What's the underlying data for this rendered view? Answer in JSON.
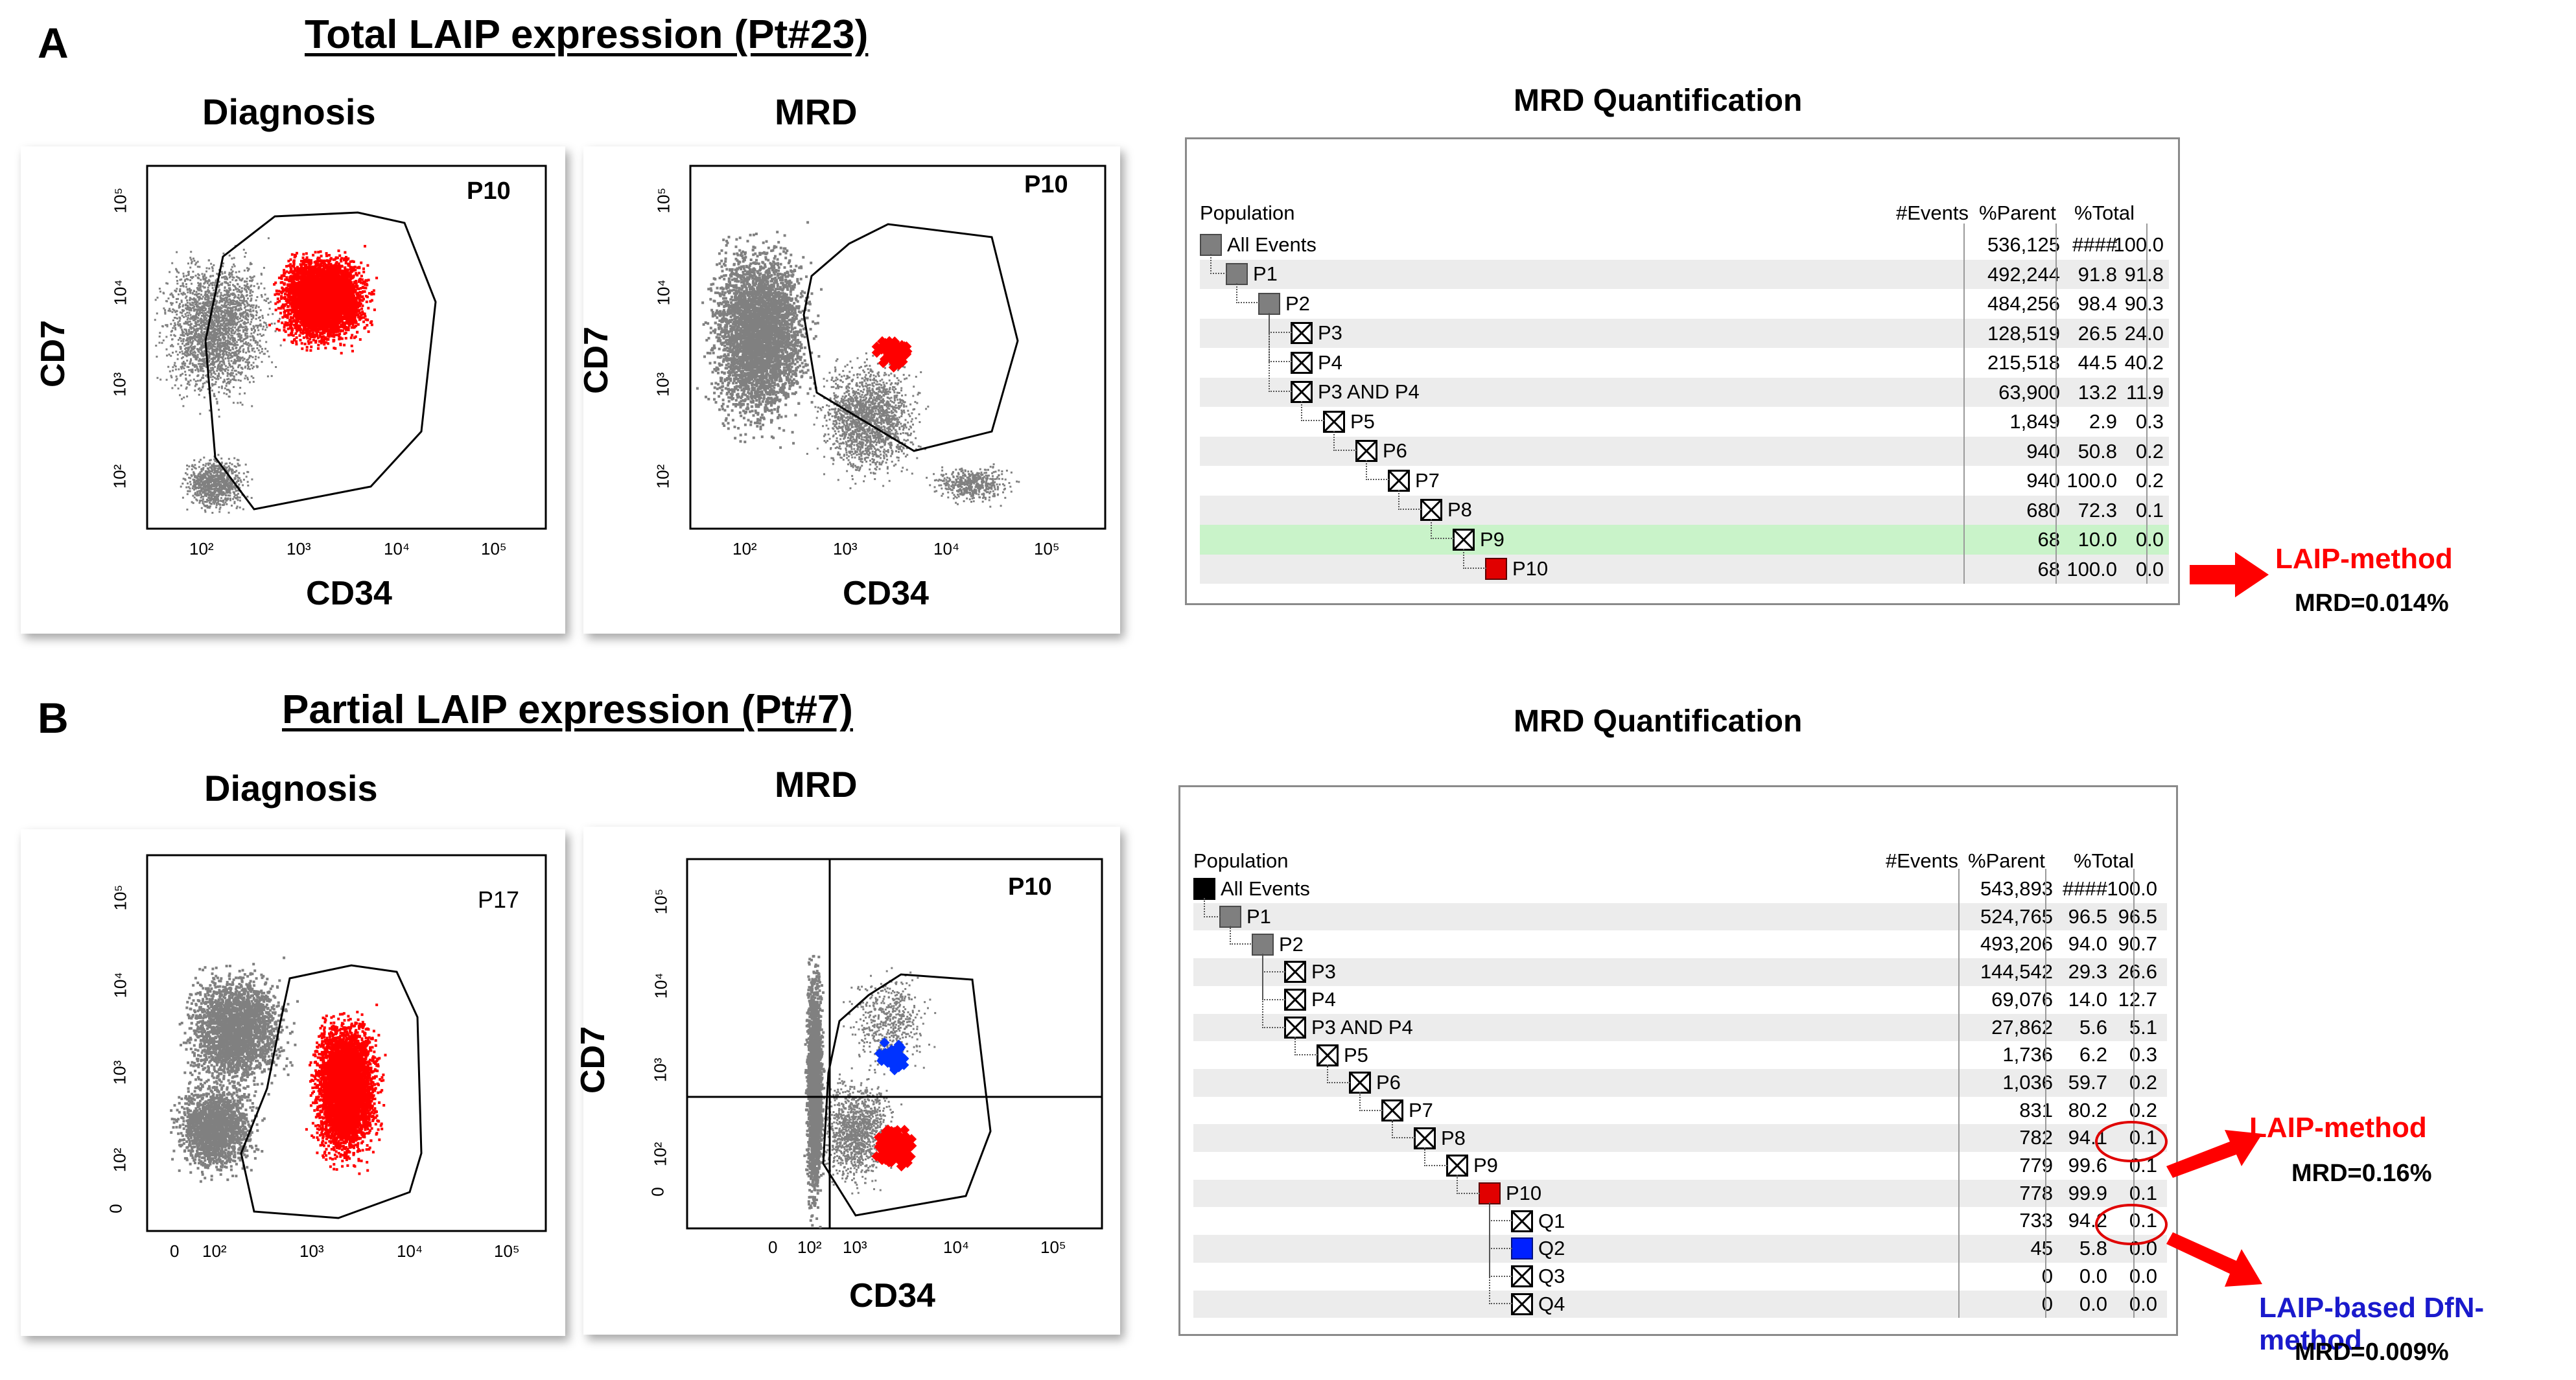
{
  "panel_a": {
    "letter": "A",
    "title": "Total LAIP expression (Pt#23)",
    "diagnosis": {
      "title": "Diagnosis",
      "gate": "P10",
      "xlabel": "CD34",
      "ylabel": "CD7",
      "xticks": [
        "10²",
        "10³",
        "10⁴",
        "10⁵"
      ],
      "yticks": [
        "10⁵",
        "10⁴",
        "10³",
        "10²"
      ]
    },
    "mrd": {
      "title": "MRD",
      "gate": "P10",
      "xlabel": "CD34",
      "ylabel": "CD7",
      "xticks": [
        "10²",
        "10³",
        "10⁴",
        "10⁵"
      ],
      "yticks": [
        "10⁵",
        "10⁴",
        "10³",
        "10²"
      ]
    },
    "quant_title": "MRD Quantification",
    "headers": {
      "population": "Population",
      "events": "#Events",
      "parent": "%Parent",
      "total": "%Total"
    },
    "rows": [
      {
        "name": "All Events",
        "icon": "gray",
        "events": "536,125",
        "parent": "####",
        "total": "100.0"
      },
      {
        "name": "P1",
        "icon": "gray",
        "events": "492,244",
        "parent": "91.8",
        "total": "91.8"
      },
      {
        "name": "P2",
        "icon": "gray",
        "events": "484,256",
        "parent": "98.4",
        "total": "90.3"
      },
      {
        "name": "P3",
        "icon": "x",
        "events": "128,519",
        "parent": "26.5",
        "total": "24.0"
      },
      {
        "name": "P4",
        "icon": "x",
        "events": "215,518",
        "parent": "44.5",
        "total": "40.2"
      },
      {
        "name": "P3 AND P4",
        "icon": "x",
        "events": "63,900",
        "parent": "13.2",
        "total": "11.9"
      },
      {
        "name": "P5",
        "icon": "x",
        "events": "1,849",
        "parent": "2.9",
        "total": "0.3"
      },
      {
        "name": "P6",
        "icon": "x",
        "events": "940",
        "parent": "50.8",
        "total": "0.2"
      },
      {
        "name": "P7",
        "icon": "x",
        "events": "940",
        "parent": "100.0",
        "total": "0.2"
      },
      {
        "name": "P8",
        "icon": "x",
        "events": "680",
        "parent": "72.3",
        "total": "0.1"
      },
      {
        "name": "P9",
        "icon": "x",
        "events": "68",
        "parent": "10.0",
        "total": "0.0"
      },
      {
        "name": "P10",
        "icon": "red",
        "events": "68",
        "parent": "100.0",
        "total": "0.0"
      }
    ],
    "annotation": {
      "method": "LAIP-method",
      "mrd": "MRD=0.014%"
    }
  },
  "panel_b": {
    "letter": "B",
    "title": "Partial LAIP expression (Pt#7)",
    "diagnosis": {
      "title": "Diagnosis",
      "gate": "P17",
      "xticks": [
        "0",
        "10²",
        "10³",
        "10⁴",
        "10⁵"
      ],
      "yticks": [
        "10⁵",
        "10⁴",
        "10³",
        "10²",
        "0"
      ]
    },
    "mrd": {
      "title": "MRD",
      "gate": "P10",
      "xlabel": "CD34",
      "ylabel": "CD7",
      "xticks": [
        "0",
        "10²",
        "10³",
        "10⁴",
        "10⁵"
      ],
      "yticks": [
        "10⁵",
        "10⁴",
        "10³",
        "10²",
        "0"
      ]
    },
    "quant_title": "MRD Quantification",
    "headers": {
      "population": "Population",
      "events": "#Events",
      "parent": "%Parent",
      "total": "%Total"
    },
    "rows": [
      {
        "name": "All Events",
        "icon": "black",
        "events": "543,893",
        "parent": "####",
        "total": "100.0"
      },
      {
        "name": "P1",
        "icon": "gray",
        "events": "524,765",
        "parent": "96.5",
        "total": "96.5"
      },
      {
        "name": "P2",
        "icon": "gray",
        "events": "493,206",
        "parent": "94.0",
        "total": "90.7"
      },
      {
        "name": "P3",
        "icon": "x",
        "events": "144,542",
        "parent": "29.3",
        "total": "26.6"
      },
      {
        "name": "P4",
        "icon": "x",
        "events": "69,076",
        "parent": "14.0",
        "total": "12.7"
      },
      {
        "name": "P3 AND P4",
        "icon": "x",
        "events": "27,862",
        "parent": "5.6",
        "total": "5.1"
      },
      {
        "name": "P5",
        "icon": "x",
        "events": "1,736",
        "parent": "6.2",
        "total": "0.3"
      },
      {
        "name": "P6",
        "icon": "x",
        "events": "1,036",
        "parent": "59.7",
        "total": "0.2"
      },
      {
        "name": "P7",
        "icon": "x",
        "events": "831",
        "parent": "80.2",
        "total": "0.2"
      },
      {
        "name": "P8",
        "icon": "x",
        "events": "782",
        "parent": "94.1",
        "total": "0.1"
      },
      {
        "name": "P9",
        "icon": "x",
        "events": "779",
        "parent": "99.6",
        "total": "0.1"
      },
      {
        "name": "P10",
        "icon": "red",
        "events": "778",
        "parent": "99.9",
        "total": "0.1"
      },
      {
        "name": "Q1",
        "icon": "x",
        "events": "733",
        "parent": "94.2",
        "total": "0.1"
      },
      {
        "name": "Q2",
        "icon": "blue",
        "events": "45",
        "parent": "5.8",
        "total": "0.0"
      },
      {
        "name": "Q3",
        "icon": "x",
        "events": "0",
        "parent": "0.0",
        "total": "0.0"
      },
      {
        "name": "Q4",
        "icon": "x",
        "events": "0",
        "parent": "0.0",
        "total": "0.0"
      }
    ],
    "annotation_laip": {
      "method": "LAIP-method",
      "mrd": "MRD=0.16%"
    },
    "annotation_dfn": {
      "method": "LAIP-based DfN-method",
      "mrd": "MRD=0.009%"
    }
  },
  "colors": {
    "gate_red": "#ff0000",
    "gate_blue": "#0033ff",
    "scatter_gray": "#808080",
    "highlight_green": "#c9f3c9"
  }
}
